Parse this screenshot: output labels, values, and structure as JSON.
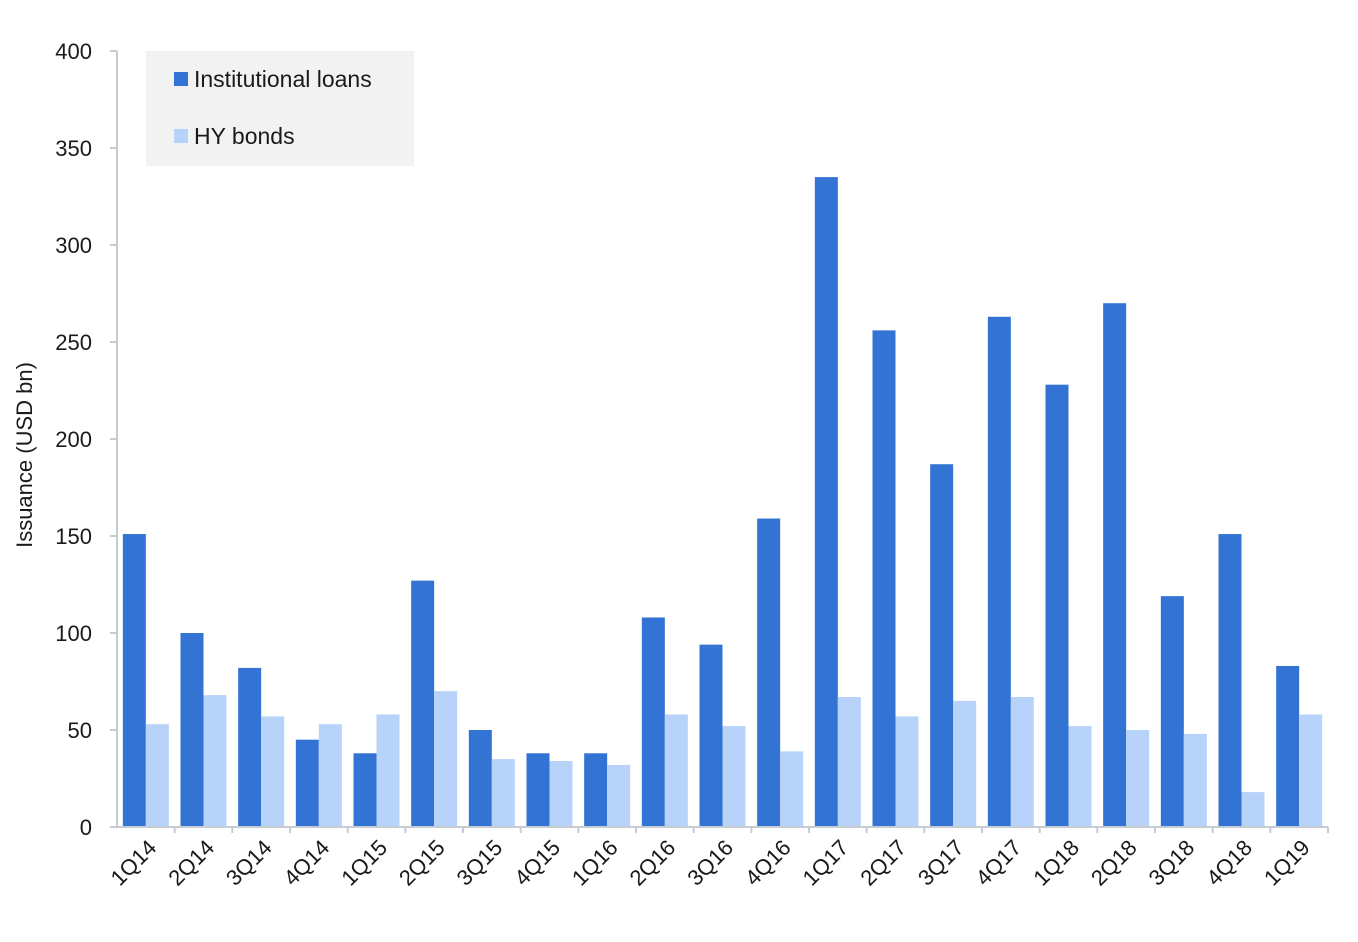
{
  "chart_data": {
    "type": "bar",
    "title": "",
    "xlabel": "",
    "ylabel": "Issuance (USD bn)",
    "ylim": [
      0,
      400
    ],
    "yticks": [
      0,
      50,
      100,
      150,
      200,
      250,
      300,
      350,
      400
    ],
    "grid": false,
    "legend_position": "top-left",
    "categories": [
      "1Q14",
      "2Q14",
      "3Q14",
      "4Q14",
      "1Q15",
      "2Q15",
      "3Q15",
      "4Q15",
      "1Q16",
      "2Q16",
      "3Q16",
      "4Q16",
      "1Q17",
      "2Q17",
      "3Q17",
      "4Q17",
      "1Q18",
      "2Q18",
      "3Q18",
      "4Q18",
      "1Q19"
    ],
    "series": [
      {
        "name": "Institutional loans",
        "color": "#3373d3",
        "values": [
          151,
          100,
          82,
          45,
          38,
          127,
          50,
          38,
          38,
          108,
          94,
          159,
          335,
          256,
          187,
          263,
          228,
          270,
          119,
          151,
          83
        ]
      },
      {
        "name": "HY bonds",
        "color": "#b8d3fa",
        "values": [
          53,
          68,
          57,
          53,
          58,
          70,
          35,
          34,
          32,
          58,
          52,
          39,
          67,
          57,
          65,
          67,
          52,
          50,
          48,
          18,
          58
        ]
      }
    ]
  },
  "colors": {
    "axis": "#c6ccd4",
    "legend_bg": "#f2f2f2"
  }
}
